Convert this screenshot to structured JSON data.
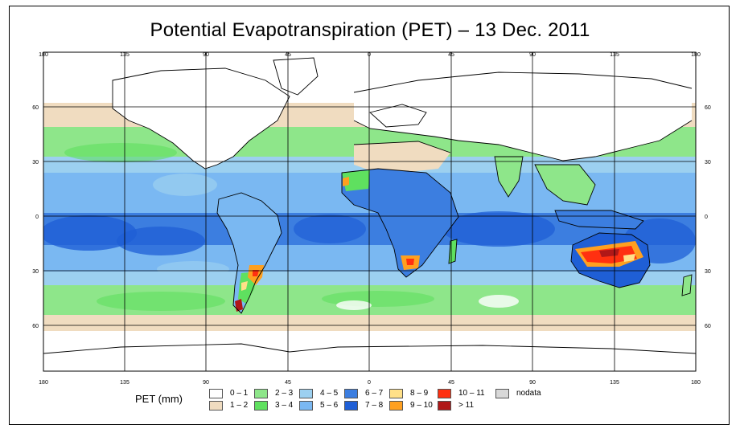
{
  "title": "Potential Evapotranspiration (PET) – 13 Dec. 2011",
  "x_ticks_top": [
    "180",
    "135",
    "90",
    "45",
    "0",
    "45",
    "90",
    "135",
    "180"
  ],
  "x_ticks_bottom": [
    "180",
    "135",
    "90",
    "45",
    "0",
    "45",
    "90",
    "135",
    "180"
  ],
  "y_ticks": [
    "60",
    "30",
    "0",
    "30",
    "60"
  ],
  "colors": {
    "ocean_deep": "#1f5fd6",
    "ocean_mid": "#4f8fe6",
    "ocean_light": "#9cd0f0",
    "green_light": "#8ee68a",
    "green": "#5fe05f",
    "tan": "#f0dcc0",
    "land_white": "#ffffff",
    "yellow": "#ffd870",
    "orange": "#ffa020",
    "red": "#ff3010",
    "darkred": "#b01818",
    "nodata": "#d8d8d8"
  },
  "legend": {
    "title": "PET (mm)",
    "items": [
      {
        "label": "0 – 1",
        "color": "#ffffff"
      },
      {
        "label": "1 – 2",
        "color": "#f0dcc0"
      },
      {
        "label": "2 – 3",
        "color": "#8ee68a"
      },
      {
        "label": "3 – 4",
        "color": "#5fe05f"
      },
      {
        "label": "4 – 5",
        "color": "#9cd0f0"
      },
      {
        "label": "5 – 6",
        "color": "#7ab8f2"
      },
      {
        "label": "6 – 7",
        "color": "#3c7ee0"
      },
      {
        "label": "7 – 8",
        "color": "#1f5fd6"
      },
      {
        "label": "8 – 9",
        "color": "#ffe088"
      },
      {
        "label": "9 – 10",
        "color": "#ffa020"
      },
      {
        "label": "10 – 11",
        "color": "#ff3010"
      },
      {
        "label": "> 11",
        "color": "#b01818"
      },
      {
        "label": "nodata",
        "color": "#d8d8d8"
      }
    ]
  }
}
